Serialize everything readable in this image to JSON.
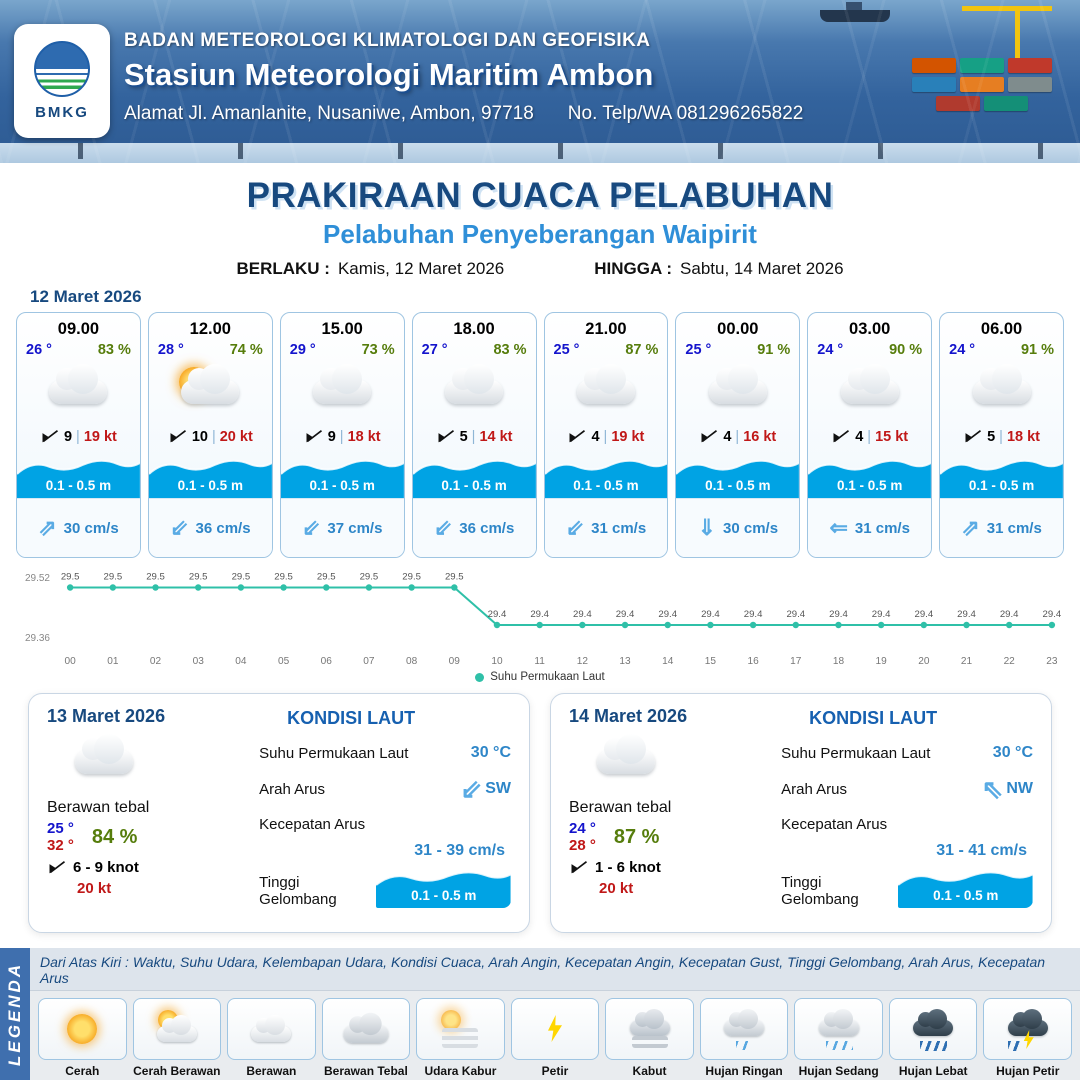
{
  "header": {
    "org": "BADAN METEOROLOGI KLIMATOLOGI DAN GEOFISIKA",
    "station": "Stasiun Meteorologi Maritim Ambon",
    "address": "Alamat Jl. Amanlanite, Nusaniwe, Ambon, 97718",
    "phone": "No. Telp/WA  081296265822",
    "logo": "BMKG"
  },
  "title": {
    "main": "PRAKIRAAN CUACA PELABUHAN",
    "subtitle": "Pelabuhan Penyeberangan Waipirit",
    "berlaku_label": "BERLAKU :",
    "berlaku_value": "Kamis, 12 Maret 2026",
    "hingga_label": "HINGGA :",
    "hingga_value": "Sabtu, 14 Maret 2026"
  },
  "forecast": {
    "date": "12 Maret 2026",
    "cards": [
      {
        "time": "09.00",
        "temp": "26 °",
        "humidity": "83 %",
        "icon": "berawan",
        "wind": "9",
        "gust": "19 kt",
        "wave": "0.1 - 0.5 m",
        "current_arrow": "⇗",
        "current": "30 cm/s"
      },
      {
        "time": "12.00",
        "temp": "28 °",
        "humidity": "74 %",
        "icon": "cerah-berawan",
        "wind": "10",
        "gust": "20 kt",
        "wave": "0.1 - 0.5 m",
        "current_arrow": "⇙",
        "current": "36 cm/s"
      },
      {
        "time": "15.00",
        "temp": "29 °",
        "humidity": "73 %",
        "icon": "berawan",
        "wind": "9",
        "gust": "18 kt",
        "wave": "0.1 - 0.5 m",
        "current_arrow": "⇙",
        "current": "37 cm/s"
      },
      {
        "time": "18.00",
        "temp": "27 °",
        "humidity": "83 %",
        "icon": "berawan",
        "wind": "5",
        "gust": "14 kt",
        "wave": "0.1 - 0.5 m",
        "current_arrow": "⇙",
        "current": "36 cm/s"
      },
      {
        "time": "21.00",
        "temp": "25 °",
        "humidity": "87 %",
        "icon": "berawan",
        "wind": "4",
        "gust": "19 kt",
        "wave": "0.1 - 0.5 m",
        "current_arrow": "⇙",
        "current": "31 cm/s"
      },
      {
        "time": "00.00",
        "temp": "25 °",
        "humidity": "91 %",
        "icon": "berawan",
        "wind": "4",
        "gust": "16 kt",
        "wave": "0.1 - 0.5 m",
        "current_arrow": "⇓",
        "current": "30 cm/s"
      },
      {
        "time": "03.00",
        "temp": "24 °",
        "humidity": "90 %",
        "icon": "berawan",
        "wind": "4",
        "gust": "15 kt",
        "wave": "0.1 - 0.5 m",
        "current_arrow": "⇐",
        "current": "31 cm/s"
      },
      {
        "time": "06.00",
        "temp": "24 °",
        "humidity": "91 %",
        "icon": "berawan",
        "wind": "5",
        "gust": "18 kt",
        "wave": "0.1 - 0.5 m",
        "current_arrow": "⇗",
        "current": "31 cm/s"
      }
    ]
  },
  "labels": {
    "wind_divider": "|",
    "kondisi_laut": "KONDISI LAUT",
    "sst": "Suhu Permukaan Laut",
    "arah_arus": "Arah Arus",
    "kecepatan_arus": "Kecepatan Arus",
    "tinggi_gelombang": "Tinggi Gelombang"
  },
  "chart_data": {
    "type": "line",
    "series": [
      {
        "name": "Suhu Permukaan Laut",
        "values": [
          29.5,
          29.5,
          29.5,
          29.5,
          29.5,
          29.5,
          29.5,
          29.5,
          29.5,
          29.5,
          29.4,
          29.4,
          29.4,
          29.4,
          29.4,
          29.4,
          29.4,
          29.4,
          29.4,
          29.4,
          29.4,
          29.4,
          29.4,
          29.4
        ]
      }
    ],
    "x": [
      "00",
      "01",
      "02",
      "03",
      "04",
      "05",
      "06",
      "07",
      "08",
      "09",
      "10",
      "11",
      "12",
      "13",
      "14",
      "15",
      "16",
      "17",
      "18",
      "19",
      "20",
      "21",
      "22",
      "23"
    ],
    "point_labels": [
      "29.5",
      "29.5",
      "29.5",
      "29.5",
      "29.5",
      "29.5",
      "29.5",
      "29.5",
      "29.5",
      "29.5",
      "29.4",
      "29.4",
      "29.4",
      "29.4",
      "29.4",
      "29.4",
      "29.4",
      "29.4",
      "29.4",
      "29.4",
      "29.4",
      "29.4",
      "29.4",
      "29.4"
    ],
    "ylim": [
      29.36,
      29.52
    ],
    "y_ticks": [
      "29.52",
      "29.36"
    ],
    "xlabel": "",
    "ylabel": "",
    "line_color": "#2fc0a8",
    "grid": false,
    "legend_position": "bottom"
  },
  "daily": [
    {
      "date": "13 Maret 2026",
      "condition": "Berawan tebal",
      "temp_min": "25 °",
      "temp_max": "32 °",
      "humidity": "84 %",
      "wind": "6 - 9 knot",
      "gust": "20 kt",
      "sst": "30 °C",
      "current_dir": "SW",
      "current_arrow": "⇙",
      "current_speed": "31 - 39 cm/s",
      "wave": "0.1 - 0.5 m"
    },
    {
      "date": "14 Maret 2026",
      "condition": "Berawan tebal",
      "temp_min": "24 °",
      "temp_max": "28 °",
      "humidity": "87 %",
      "wind": "1 - 6 knot",
      "gust": "20 kt",
      "sst": "30 °C",
      "current_dir": "NW",
      "current_arrow": "⇖",
      "current_speed": "31 - 41 cm/s",
      "wave": "0.1 - 0.5 m"
    }
  ],
  "legend": {
    "bar": "LEGENDA",
    "description": "Dari Atas Kiri : Waktu, Suhu Udara, Kelembapan Udara, Kondisi Cuaca, Arah Angin, Kecepatan Angin, Kecepatan Gust, Tinggi Gelombang, Arah Arus, Kecepatan Arus",
    "items": [
      {
        "label": "Cerah",
        "icon": "cerah"
      },
      {
        "label": "Cerah Berawan",
        "icon": "cerah-berawan"
      },
      {
        "label": "Berawan",
        "icon": "berawan"
      },
      {
        "label": "Berawan Tebal",
        "icon": "berawan-tebal"
      },
      {
        "label": "Udara Kabur",
        "icon": "udara-kabur"
      },
      {
        "label": "Petir",
        "icon": "petir"
      },
      {
        "label": "Kabut",
        "icon": "kabut"
      },
      {
        "label": "Hujan Ringan",
        "icon": "hujan-ringan"
      },
      {
        "label": "Hujan Sedang",
        "icon": "hujan-sedang"
      },
      {
        "label": "Hujan Lebat",
        "icon": "hujan-lebat"
      },
      {
        "label": "Hujan Petir",
        "icon": "hujan-petir"
      }
    ]
  },
  "colors": {
    "navy": "#17497f",
    "subtitle_blue": "#2f8fd8",
    "temp_blue": "#1414cc",
    "humidity_green": "#567d0c",
    "gust_red": "#c01818",
    "wave_blue": "#00a3e4",
    "current_blue": "#2e86c8",
    "chart_teal": "#2fc0a8",
    "header_blue": "#33639d"
  }
}
